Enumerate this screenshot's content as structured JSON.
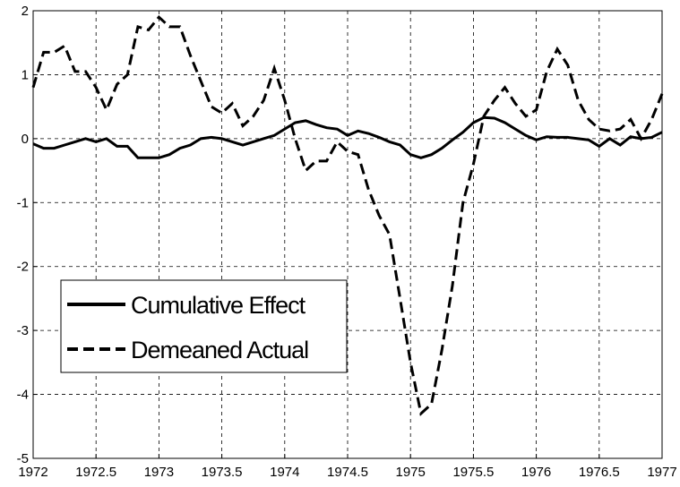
{
  "chart_data": {
    "type": "line",
    "x": [
      1972,
      1972.083,
      1972.167,
      1972.25,
      1972.333,
      1972.417,
      1972.5,
      1972.583,
      1972.667,
      1972.75,
      1972.833,
      1972.917,
      1973,
      1973.083,
      1973.167,
      1973.25,
      1973.333,
      1973.417,
      1973.5,
      1973.583,
      1973.667,
      1973.75,
      1973.833,
      1973.917,
      1974,
      1974.083,
      1974.167,
      1974.25,
      1974.333,
      1974.417,
      1974.5,
      1974.583,
      1974.667,
      1974.75,
      1974.833,
      1974.917,
      1975,
      1975.083,
      1975.167,
      1975.25,
      1975.333,
      1975.417,
      1975.5,
      1975.583,
      1975.667,
      1975.75,
      1975.833,
      1975.917,
      1976,
      1976.083,
      1976.167,
      1976.25,
      1976.333,
      1976.417,
      1976.5,
      1976.583,
      1976.667,
      1976.75,
      1976.833,
      1976.917,
      1977
    ],
    "series": [
      {
        "name": "Cumulative Effect",
        "color": "#000000",
        "dash": "solid",
        "values": [
          -0.08,
          -0.15,
          -0.15,
          -0.1,
          -0.05,
          0.0,
          -0.05,
          0.0,
          -0.12,
          -0.12,
          -0.3,
          -0.3,
          -0.3,
          -0.25,
          -0.15,
          -0.1,
          0.0,
          0.02,
          0.0,
          -0.05,
          -0.1,
          -0.05,
          0.0,
          0.05,
          0.15,
          0.25,
          0.28,
          0.22,
          0.17,
          0.15,
          0.05,
          0.12,
          0.08,
          0.02,
          -0.05,
          -0.1,
          -0.25,
          -0.3,
          -0.25,
          -0.15,
          -0.02,
          0.1,
          0.25,
          0.33,
          0.32,
          0.25,
          0.15,
          0.05,
          -0.02,
          0.03,
          0.02,
          0.02,
          0.0,
          -0.02,
          -0.12,
          0.0,
          -0.1,
          0.03,
          0.0,
          0.02,
          0.1
        ]
      },
      {
        "name": "Demeaned Actual",
        "color": "#000000",
        "dash": "dashed",
        "values": [
          0.8,
          1.35,
          1.35,
          1.45,
          1.05,
          1.05,
          0.8,
          0.45,
          0.85,
          1.0,
          1.75,
          1.7,
          1.9,
          1.75,
          1.75,
          1.3,
          0.9,
          0.5,
          0.4,
          0.55,
          0.2,
          0.35,
          0.6,
          1.1,
          0.6,
          0.0,
          -0.5,
          -0.35,
          -0.35,
          -0.05,
          -0.2,
          -0.25,
          -0.8,
          -1.2,
          -1.5,
          -2.5,
          -3.5,
          -4.3,
          -4.15,
          -3.3,
          -2.3,
          -1.0,
          -0.4,
          0.35,
          0.6,
          0.8,
          0.55,
          0.35,
          0.45,
          1.05,
          1.4,
          1.15,
          0.6,
          0.3,
          0.15,
          0.12,
          0.15,
          0.3,
          0.0,
          0.3,
          0.7
        ]
      }
    ],
    "xlim": [
      1972,
      1977
    ],
    "xticks": [
      1972,
      1972.5,
      1973,
      1973.5,
      1974,
      1974.5,
      1975,
      1975.5,
      1976,
      1976.5,
      1977
    ],
    "ylim": [
      -5,
      2
    ],
    "yticks": [
      -5,
      -4,
      -3,
      -2,
      -1,
      0,
      1,
      2
    ],
    "grid": true,
    "legend": "lower left"
  }
}
